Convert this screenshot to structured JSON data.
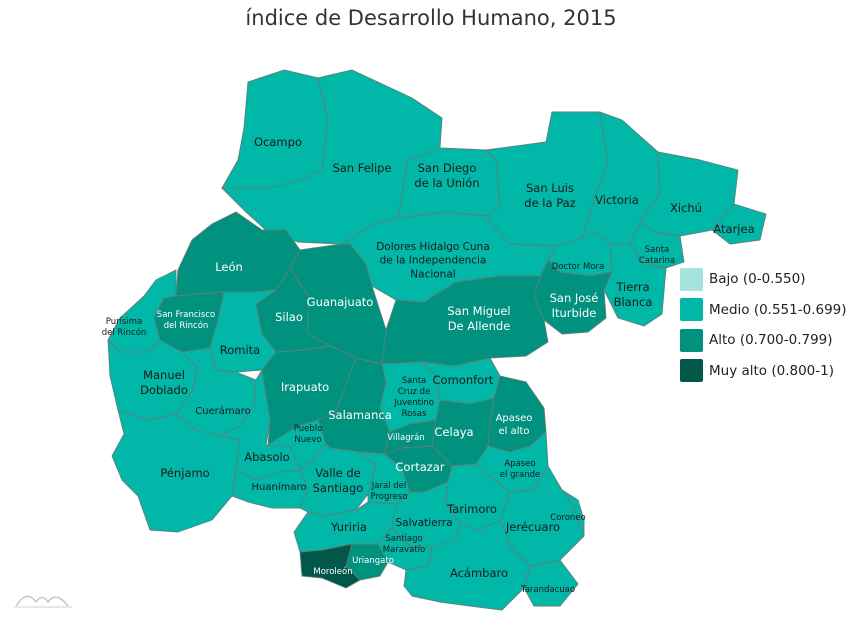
{
  "title": "índice de Desarrollo Humano, 2015",
  "colors": {
    "bajo": "#a5e3dc",
    "medio": "#00b7a8",
    "alto": "#00917f",
    "muy_alto": "#00574a",
    "label_dark": "#1a1a1a",
    "label_light": "#ffffff"
  },
  "legend": {
    "items": [
      {
        "label": "Bajo (0-0.550)",
        "color": "#a5e3dc"
      },
      {
        "label": "Medio (0.551-0.699)",
        "color": "#00b7a8"
      },
      {
        "label": "Alto (0.700-0.799)",
        "color": "#00917f"
      },
      {
        "label": "Muy alto (0.800-1)",
        "color": "#00574a"
      }
    ]
  },
  "municipios": [
    {
      "name": "Ocampo",
      "level": "medio"
    },
    {
      "name": "San Felipe",
      "level": "medio"
    },
    {
      "name": "San Diego de la Unión",
      "level": "medio"
    },
    {
      "name": "San Luis de la Paz",
      "level": "medio"
    },
    {
      "name": "Victoria",
      "level": "medio"
    },
    {
      "name": "Xichú",
      "level": "medio"
    },
    {
      "name": "Atarjea",
      "level": "medio"
    },
    {
      "name": "Santa Catarina",
      "level": "medio"
    },
    {
      "name": "Tierra Blanca",
      "level": "medio"
    },
    {
      "name": "Doctor Mora",
      "level": "medio"
    },
    {
      "name": "San José Iturbide",
      "level": "alto"
    },
    {
      "name": "Dolores Hidalgo Cuna de la Independencia Nacional",
      "level": "medio"
    },
    {
      "name": "San Miguel De Allende",
      "level": "alto"
    },
    {
      "name": "León",
      "level": "alto"
    },
    {
      "name": "Guanajuato",
      "level": "alto"
    },
    {
      "name": "Silao",
      "level": "alto"
    },
    {
      "name": "San Francisco del Rincón",
      "level": "alto"
    },
    {
      "name": "Purísima del Rincón",
      "level": "medio"
    },
    {
      "name": "Romita",
      "level": "medio"
    },
    {
      "name": "Manuel Doblado",
      "level": "medio"
    },
    {
      "name": "Cuerámaro",
      "level": "medio"
    },
    {
      "name": "Pénjamo",
      "level": "medio"
    },
    {
      "name": "Abasolo",
      "level": "medio"
    },
    {
      "name": "Huanímaro",
      "level": "medio"
    },
    {
      "name": "Irapuato",
      "level": "alto"
    },
    {
      "name": "Pueblo Nuevo",
      "level": "medio"
    },
    {
      "name": "Salamanca",
      "level": "alto"
    },
    {
      "name": "Valle de Santiago",
      "level": "medio"
    },
    {
      "name": "Jaral del Progreso",
      "level": "medio"
    },
    {
      "name": "Santa Cruz de Juventino Rosas",
      "level": "medio"
    },
    {
      "name": "Comonfort",
      "level": "medio"
    },
    {
      "name": "Villagrán",
      "level": "alto"
    },
    {
      "name": "Celaya",
      "level": "alto"
    },
    {
      "name": "Apaseo el alto",
      "level": "alto"
    },
    {
      "name": "Apaseo el grande",
      "level": "medio"
    },
    {
      "name": "Cortazar",
      "level": "alto"
    },
    {
      "name": "Tarimoro",
      "level": "medio"
    },
    {
      "name": "Yuriria",
      "level": "medio"
    },
    {
      "name": "Salvatierra",
      "level": "medio"
    },
    {
      "name": "Santiago Maravatío",
      "level": "medio"
    },
    {
      "name": "Jerécuaro",
      "level": "medio"
    },
    {
      "name": "Coroneo",
      "level": "medio"
    },
    {
      "name": "Uriangato",
      "level": "alto"
    },
    {
      "name": "Moroleón",
      "level": "muy_alto"
    },
    {
      "name": "Acámbaro",
      "level": "medio"
    },
    {
      "name": "Tarandacuao",
      "level": "medio"
    }
  ],
  "labels": [
    {
      "lines": [
        "Ocampo"
      ],
      "light": false
    },
    {
      "lines": [
        "San Felipe"
      ],
      "light": false
    },
    {
      "lines": [
        "San Diego",
        "de la Unión"
      ],
      "light": false
    },
    {
      "lines": [
        "San Luis",
        "de la Paz"
      ],
      "light": false
    },
    {
      "lines": [
        "Victoria"
      ],
      "light": false
    },
    {
      "lines": [
        "Xichú"
      ],
      "light": false
    },
    {
      "lines": [
        "Atarjea"
      ],
      "light": false
    },
    {
      "lines": [
        "Santa",
        "Catarina"
      ],
      "light": false
    },
    {
      "lines": [
        "Tierra",
        "Blanca"
      ],
      "light": false
    },
    {
      "lines": [
        "Doctor Mora"
      ],
      "light": false
    },
    {
      "lines": [
        "San José",
        "Iturbide"
      ],
      "light": true
    },
    {
      "lines": [
        "Dolores Hidalgo Cuna",
        "de la Independencia",
        "Nacional"
      ],
      "light": false
    },
    {
      "lines": [
        "San Miguel",
        "De Allende"
      ],
      "light": true
    },
    {
      "lines": [
        "León"
      ],
      "light": true
    },
    {
      "lines": [
        "Guanajuato"
      ],
      "light": true
    },
    {
      "lines": [
        "Silao"
      ],
      "light": true
    },
    {
      "lines": [
        "San Francisco",
        "del Rincón"
      ],
      "light": true
    },
    {
      "lines": [
        "Purísima",
        "del Rincón"
      ],
      "light": false
    },
    {
      "lines": [
        "Romita"
      ],
      "light": false
    },
    {
      "lines": [
        "Manuel",
        "Doblado"
      ],
      "light": false
    },
    {
      "lines": [
        "Cuerámaro"
      ],
      "light": false
    },
    {
      "lines": [
        "Pénjamo"
      ],
      "light": false
    },
    {
      "lines": [
        "Abasolo"
      ],
      "light": false
    },
    {
      "lines": [
        "Huanímaro"
      ],
      "light": false
    },
    {
      "lines": [
        "Irapuato"
      ],
      "light": true
    },
    {
      "lines": [
        "Pueblo",
        "Nuevo"
      ],
      "light": false
    },
    {
      "lines": [
        "Salamanca"
      ],
      "light": true
    },
    {
      "lines": [
        "Valle de",
        "Santiago"
      ],
      "light": false
    },
    {
      "lines": [
        "Jaral del",
        "Progreso"
      ],
      "light": false
    },
    {
      "lines": [
        "Santa",
        "Cruz de",
        "Juventino",
        "Rosas"
      ],
      "light": false
    },
    {
      "lines": [
        "Comonfort"
      ],
      "light": false
    },
    {
      "lines": [
        "Villagrán"
      ],
      "light": true
    },
    {
      "lines": [
        "Celaya"
      ],
      "light": true
    },
    {
      "lines": [
        "Apaseo",
        "el alto"
      ],
      "light": true
    },
    {
      "lines": [
        "Apaseo",
        "el grande"
      ],
      "light": false
    },
    {
      "lines": [
        "Cortazar"
      ],
      "light": true
    },
    {
      "lines": [
        "Tarimoro"
      ],
      "light": false
    },
    {
      "lines": [
        "Yuriria"
      ],
      "light": false
    },
    {
      "lines": [
        "Salvatierra"
      ],
      "light": false
    },
    {
      "lines": [
        "Santiago",
        "Maravatío"
      ],
      "light": false
    },
    {
      "lines": [
        "Jerécuaro"
      ],
      "light": false
    },
    {
      "lines": [
        "Coroneo"
      ],
      "light": false
    },
    {
      "lines": [
        "Uriangato"
      ],
      "light": true
    },
    {
      "lines": [
        "Moroleón"
      ],
      "light": true
    },
    {
      "lines": [
        "Acámbaro"
      ],
      "light": false
    },
    {
      "lines": [
        "Tarandacuao"
      ],
      "light": false
    }
  ]
}
